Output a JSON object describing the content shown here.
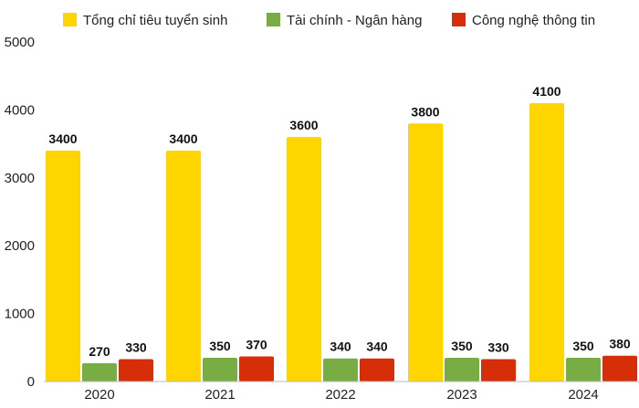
{
  "chart_data": {
    "type": "bar",
    "categories": [
      "2020",
      "2021",
      "2022",
      "2023",
      "2024"
    ],
    "series": [
      {
        "name": "Tổng chỉ tiêu tuyển sinh",
        "values": [
          3400,
          3400,
          3600,
          3800,
          4100
        ],
        "color": "#FFD500"
      },
      {
        "name": "Tài chính - Ngân hàng",
        "values": [
          270,
          350,
          340,
          350,
          350
        ],
        "color": "#78AC44"
      },
      {
        "name": "Công nghệ thông tin",
        "values": [
          330,
          370,
          340,
          330,
          380
        ],
        "color": "#D62E09"
      }
    ],
    "ylim": [
      0,
      5000
    ],
    "yticks": [
      "0",
      "1000",
      "2000",
      "3000",
      "4000",
      "5000"
    ],
    "grid": false,
    "legend_position": "top"
  }
}
